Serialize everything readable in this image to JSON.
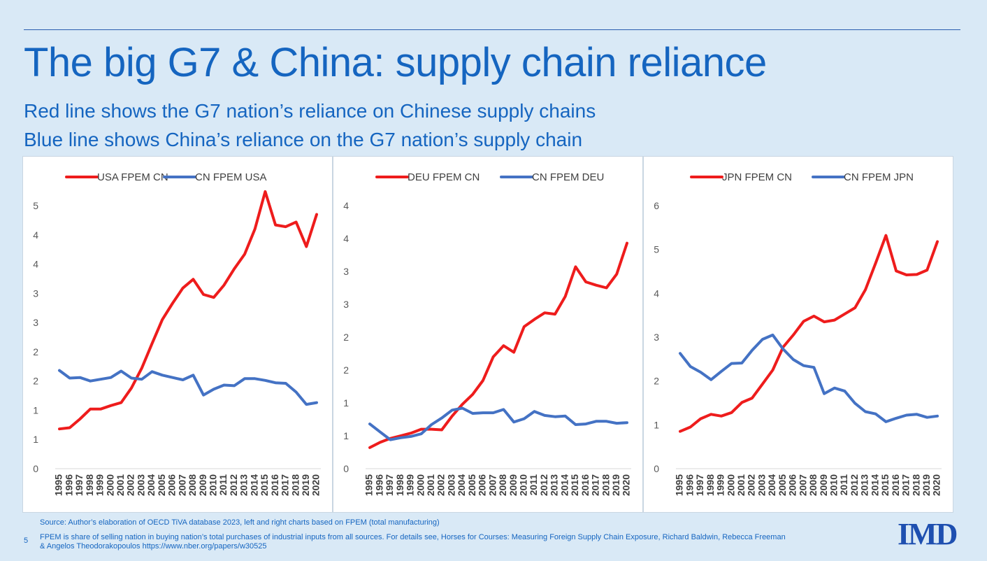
{
  "title": "The big G7 & China: supply chain reliance",
  "subtitle_lines": [
    "Red line shows the G7 nation’s reliance on Chinese supply chains",
    "Blue line shows China’s reliance on the G7 nation’s supply chain"
  ],
  "colors": {
    "red_series": "#ee1c1c",
    "blue_series": "#4472c4",
    "title_blue": "#1565c0"
  },
  "footer": {
    "source": "Source: Author’s elaboration of OECD TiVA database 2023, left and right charts based on FPEM  (total manufacturing)",
    "note_line1": "FPEM is share of selling nation in buying nation’s total purchases of industrial inputs from all sources. For details see, Horses for Courses: Measuring Foreign Supply Chain Exposure, Richard Baldwin, Rebecca Freeman",
    "note_line2": "& Angelos Theodorakopoulos https://www.nber.org/papers/w30525",
    "page_number": "5",
    "logo": "IMD"
  },
  "chart_data": [
    {
      "type": "line",
      "title": "",
      "ylim": [
        0,
        4.5
      ],
      "y_tick_labels": [
        "0",
        "1",
        "1",
        "2",
        "2",
        "3",
        "3",
        "4",
        "4",
        "5"
      ],
      "grid": false,
      "legend_position": "top",
      "x": [
        "1995",
        "1996",
        "1997",
        "1998",
        "1999",
        "2000",
        "2001",
        "2002",
        "2003",
        "2004",
        "2005",
        "2006",
        "2007",
        "2008",
        "2009",
        "2010",
        "2011",
        "2012",
        "2013",
        "2014",
        "2015",
        "2016",
        "2017",
        "2018",
        "2019",
        "2020"
      ],
      "series": [
        {
          "name": "USA FPEM CN",
          "color": "#ee1c1c",
          "values": [
            0.68,
            0.7,
            0.85,
            1.02,
            1.02,
            1.08,
            1.13,
            1.38,
            1.72,
            2.14,
            2.55,
            2.83,
            3.09,
            3.24,
            2.98,
            2.93,
            3.14,
            3.42,
            3.67,
            4.1,
            4.74,
            4.17,
            4.14,
            4.22,
            3.8,
            4.35
          ]
        },
        {
          "name": "CN FPEM USA",
          "color": "#4472c4",
          "values": [
            1.68,
            1.55,
            1.56,
            1.5,
            1.53,
            1.56,
            1.67,
            1.55,
            1.53,
            1.66,
            1.6,
            1.56,
            1.52,
            1.6,
            1.26,
            1.36,
            1.43,
            1.42,
            1.54,
            1.54,
            1.51,
            1.47,
            1.46,
            1.31,
            1.1,
            1.13
          ]
        }
      ]
    },
    {
      "type": "line",
      "title": "",
      "ylim": [
        0,
        4
      ],
      "y_tick_labels": [
        "0",
        "1",
        "1",
        "2",
        "2",
        "3",
        "3",
        "4",
        "4"
      ],
      "grid": false,
      "legend_position": "top",
      "x": [
        "1995",
        "1996",
        "1997",
        "1998",
        "1999",
        "2000",
        "2001",
        "2002",
        "2003",
        "2004",
        "2005",
        "2006",
        "2007",
        "2008",
        "2009",
        "2010",
        "2011",
        "2012",
        "2013",
        "2014",
        "2015",
        "2016",
        "2017",
        "2018",
        "2019",
        "2020"
      ],
      "series": [
        {
          "name": "DEU FPEM CN",
          "color": "#ee1c1c",
          "values": [
            0.32,
            0.4,
            0.46,
            0.5,
            0.54,
            0.6,
            0.6,
            0.59,
            0.8,
            0.98,
            1.13,
            1.34,
            1.7,
            1.87,
            1.77,
            2.16,
            2.27,
            2.37,
            2.35,
            2.62,
            3.07,
            2.84,
            2.79,
            2.75,
            2.96,
            3.43
          ]
        },
        {
          "name": "CN FPEM DEU",
          "color": "#4472c4",
          "values": [
            0.68,
            0.56,
            0.44,
            0.47,
            0.49,
            0.53,
            0.67,
            0.77,
            0.89,
            0.92,
            0.84,
            0.85,
            0.85,
            0.9,
            0.71,
            0.76,
            0.87,
            0.81,
            0.79,
            0.8,
            0.67,
            0.68,
            0.72,
            0.72,
            0.69,
            0.7
          ]
        }
      ]
    },
    {
      "type": "line",
      "title": "",
      "ylim": [
        0,
        6
      ],
      "y_tick_labels": [
        "0",
        "1",
        "2",
        "3",
        "4",
        "5",
        "6"
      ],
      "grid": false,
      "legend_position": "top",
      "x": [
        "1995",
        "1996",
        "1997",
        "1998",
        "1999",
        "2000",
        "2001",
        "2002",
        "2003",
        "2004",
        "2005",
        "2006",
        "2007",
        "2008",
        "2009",
        "2010",
        "2011",
        "2012",
        "2013",
        "2014",
        "2015",
        "2016",
        "2017",
        "2018",
        "2019",
        "2020"
      ],
      "series": [
        {
          "name": "JPN FPEM CN",
          "color": "#ee1c1c",
          "values": [
            0.85,
            0.95,
            1.14,
            1.24,
            1.2,
            1.28,
            1.51,
            1.61,
            1.93,
            2.25,
            2.77,
            3.05,
            3.36,
            3.48,
            3.35,
            3.39,
            3.53,
            3.67,
            4.08,
            4.69,
            5.32,
            4.51,
            4.42,
            4.43,
            4.53,
            5.18
          ]
        },
        {
          "name": "CN FPEM JPN",
          "color": "#4472c4",
          "values": [
            2.63,
            2.33,
            2.2,
            2.03,
            2.22,
            2.4,
            2.41,
            2.7,
            2.95,
            3.05,
            2.73,
            2.49,
            2.35,
            2.31,
            1.71,
            1.84,
            1.77,
            1.49,
            1.3,
            1.25,
            1.07,
            1.15,
            1.22,
            1.24,
            1.17,
            1.2
          ]
        }
      ]
    }
  ]
}
